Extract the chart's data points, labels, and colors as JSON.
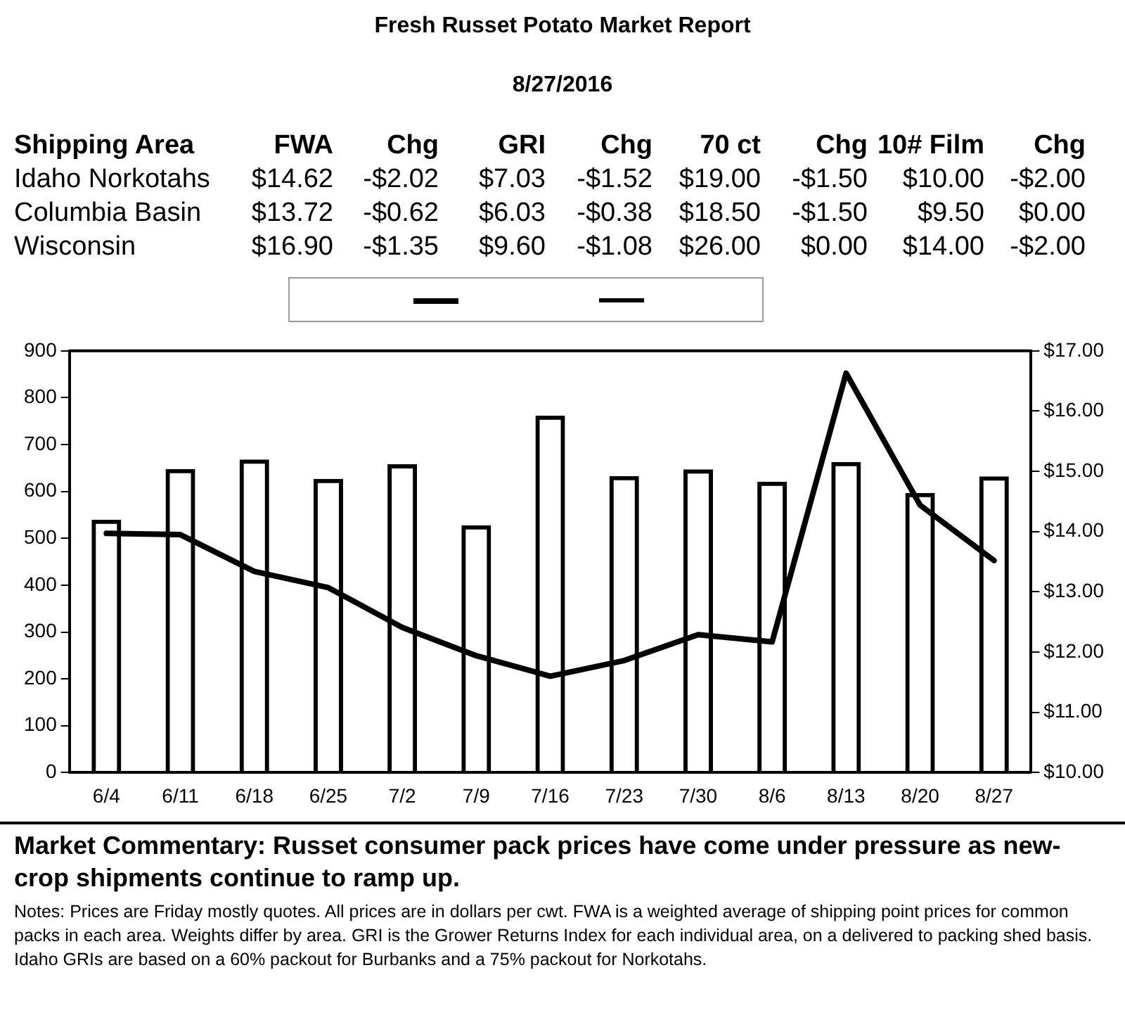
{
  "chart_data": {
    "type": "bar",
    "title": "Fresh Russet Potato Market Report",
    "subtitle": "8/27/2016",
    "categories": [
      "6/4",
      "6/11",
      "6/18",
      "6/25",
      "7/2",
      "7/9",
      "7/16",
      "7/23",
      "7/30",
      "8/6",
      "8/13",
      "8/20",
      "8/27"
    ],
    "series": [
      {
        "color": "#000000",
        "values": [
          540,
          648,
          668,
          627,
          658,
          528,
          762,
          633,
          647,
          621,
          663,
          597,
          632
        ]
      },
      {
        "type": "line",
        "axis": "y2",
        "color": "#000000",
        "values": [
          13.97,
          13.95,
          13.34,
          13.07,
          12.41,
          11.94,
          11.6,
          11.86,
          12.29,
          12.17,
          16.63,
          14.44,
          13.52
        ]
      }
    ],
    "ylim": [
      0,
      900
    ],
    "yticks": [
      0,
      100,
      200,
      300,
      400,
      500,
      600,
      700,
      800,
      900
    ],
    "y2lim": [
      10,
      17
    ],
    "y2ticks": [
      {
        "value": 10,
        "label": "$10.00"
      },
      {
        "value": 11,
        "label": "$11.00"
      },
      {
        "value": 12,
        "label": "$12.00"
      },
      {
        "value": 13,
        "label": "$13.00"
      },
      {
        "value": 14,
        "label": "$14.00"
      },
      {
        "value": 15,
        "label": "$15.00"
      },
      {
        "value": 16,
        "label": "$16.00"
      },
      {
        "value": 17,
        "label": "$17.00"
      }
    ],
    "grid": false,
    "marker": "none",
    "annotations": [
      "Shipping Area\tFWA\tChg\tGRI\tChg\t70 ct\tChg\t10# Film\tChg",
      "Idaho Norkotahs\t$14.62\t-$2.02\t$7.03\t-$1.52\t$19.00\t-$1.50\t$10.00\t-$2.00",
      "Columbia Basin\t$13.72\t-$0.62\t$6.03\t-$0.38\t$18.50\t-$1.50\t$9.50\t$0.00",
      "Wisconsin\t$16.90\t-$1.35\t$9.60\t-$1.08\t$26.00\t$0.00\t$14.00\t-$2.00",
      "Market Commentary: Russet consumer pack prices have come under pressure as new-crop shipments continue to ramp up.",
      "Notes: Prices are Friday mostly quotes. All prices are in dollars per cwt. FWA is a weighted average of shipping point prices for  common packs in each area. Weights differ by area. GRI is the Grower Returns Index for each individual area, on a delivered to packing shed basis. Idaho GRIs are based on a 60% packout for Burbanks and a 75% packout for Norkotahs."
    ]
  }
}
